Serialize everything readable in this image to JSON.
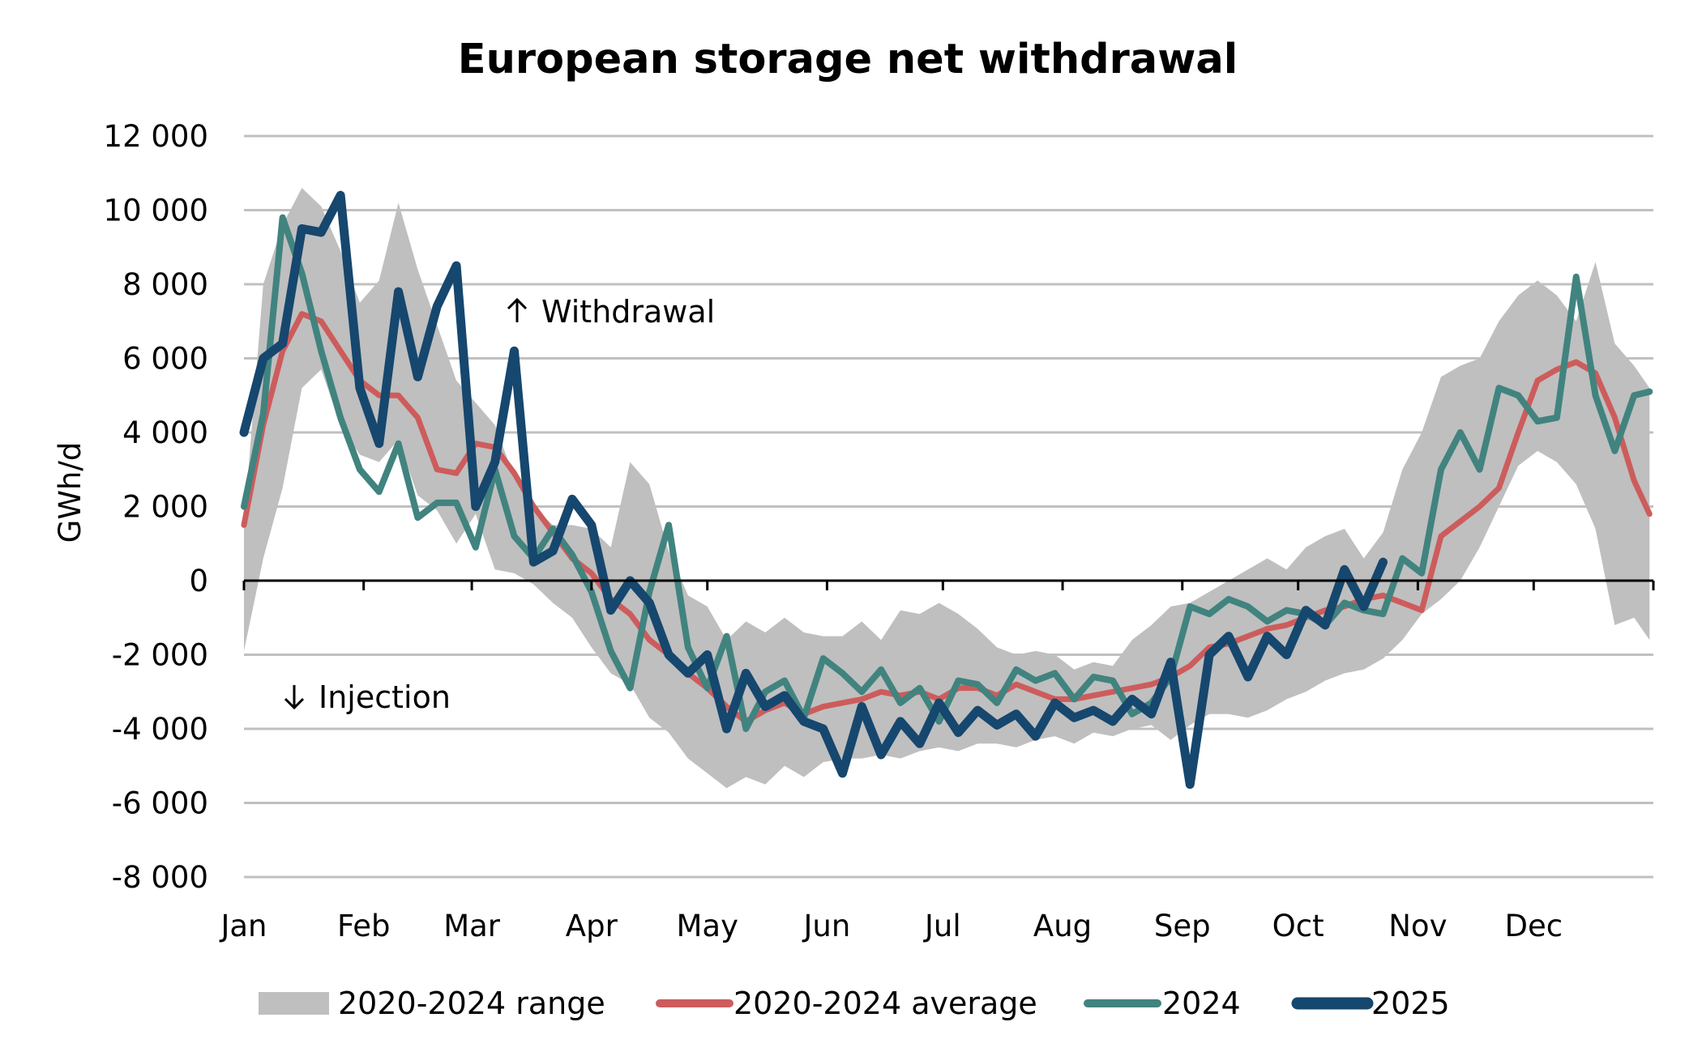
{
  "chart_data": {
    "type": "line",
    "title": "European storage net withdrawal",
    "xlabel": "",
    "ylabel": "GWh/d",
    "ylim": [
      -8000,
      12000
    ],
    "yticks": [
      12000,
      10000,
      8000,
      6000,
      4000,
      2000,
      0,
      -2000,
      -4000,
      -6000,
      -8000
    ],
    "ytick_labels": [
      "12 000",
      "10 000",
      "8 000",
      "6 000",
      "4 000",
      "2 000",
      "0",
      "-2 000",
      "-4 000",
      "-6 000",
      "-8 000"
    ],
    "xlim_days": [
      0,
      365
    ],
    "month_labels": [
      "Jan",
      "Feb",
      "Mar",
      "Apr",
      "May",
      "Jun",
      "Jul",
      "Aug",
      "Sep",
      "Oct",
      "Nov",
      "Dec"
    ],
    "month_start_days": [
      0,
      31,
      59,
      90,
      120,
      151,
      181,
      212,
      243,
      273,
      304,
      334
    ],
    "grid": true,
    "legend_position": "bottom",
    "annotations": [
      {
        "text": "Withdrawal",
        "icon": "arrow-up-icon",
        "x_day": 68,
        "y": 7300
      },
      {
        "text": "Injection",
        "icon": "arrow-down-icon",
        "x_day": 10,
        "y": -3200
      }
    ],
    "x_days": [
      0,
      5,
      10,
      15,
      20,
      25,
      30,
      35,
      40,
      45,
      50,
      55,
      60,
      65,
      70,
      75,
      80,
      85,
      90,
      95,
      100,
      105,
      110,
      115,
      120,
      125,
      130,
      135,
      140,
      145,
      150,
      155,
      160,
      165,
      170,
      175,
      180,
      185,
      190,
      195,
      200,
      205,
      210,
      215,
      220,
      225,
      230,
      235,
      240,
      245,
      250,
      255,
      260,
      265,
      270,
      275,
      280,
      285,
      290,
      295,
      300,
      305,
      310,
      315,
      320,
      325,
      330,
      335,
      340,
      345,
      350,
      355,
      360,
      364
    ],
    "series": [
      {
        "name": "2020-2024 range",
        "kind": "band",
        "color": "#bfbfbf",
        "low": [
          -1900,
          600,
          2500,
          5200,
          5700,
          4200,
          3400,
          3200,
          3800,
          2300,
          1900,
          1000,
          1800,
          300,
          200,
          -100,
          -600,
          -1000,
          -1800,
          -2500,
          -2800,
          -3700,
          -4100,
          -4800,
          -5200,
          -5600,
          -5300,
          -5500,
          -5000,
          -5300,
          -4900,
          -4800,
          -4800,
          -4700,
          -4800,
          -4600,
          -4500,
          -4600,
          -4400,
          -4400,
          -4500,
          -4300,
          -4200,
          -4400,
          -4100,
          -4200,
          -4000,
          -3900,
          -4300,
          -3900,
          -3600,
          -3600,
          -3700,
          -3500,
          -3200,
          -3000,
          -2700,
          -2500,
          -2400,
          -2100,
          -1600,
          -900,
          -500,
          0,
          900,
          2000,
          3100,
          3500,
          3200,
          2600,
          1400,
          -1200,
          -1000,
          -1600
        ],
        "high": [
          1500,
          8000,
          9600,
          10600,
          10100,
          8900,
          7500,
          8100,
          10200,
          8400,
          6900,
          5400,
          4800,
          4200,
          2800,
          2000,
          1500,
          1500,
          1400,
          900,
          3200,
          2600,
          800,
          -400,
          -700,
          -1600,
          -1100,
          -1400,
          -1000,
          -1400,
          -1500,
          -1500,
          -1100,
          -1600,
          -800,
          -900,
          -600,
          -900,
          -1300,
          -1800,
          -2000,
          -1900,
          -2000,
          -2400,
          -2200,
          -2300,
          -1600,
          -1200,
          -700,
          -600,
          -300,
          0,
          300,
          600,
          300,
          900,
          1200,
          1400,
          600,
          1300,
          3000,
          4000,
          5500,
          5800,
          6000,
          7000,
          7700,
          8100,
          7700,
          7000,
          8600,
          6400,
          5800,
          5200
        ]
      },
      {
        "name": "2020-2024 average",
        "kind": "line",
        "color": "#cd5c5c",
        "values": [
          1500,
          4200,
          6200,
          7200,
          7000,
          6200,
          5400,
          5000,
          5000,
          4400,
          3000,
          2900,
          3700,
          3600,
          2900,
          2000,
          1300,
          600,
          200,
          -500,
          -900,
          -1600,
          -2000,
          -2500,
          -2900,
          -3400,
          -3800,
          -3500,
          -3300,
          -3600,
          -3400,
          -3300,
          -3200,
          -3000,
          -3100,
          -3000,
          -3200,
          -2900,
          -2900,
          -3100,
          -2800,
          -3000,
          -3200,
          -3200,
          -3100,
          -3000,
          -2900,
          -2800,
          -2600,
          -2300,
          -1800,
          -1700,
          -1500,
          -1300,
          -1200,
          -1000,
          -800,
          -700,
          -500,
          -400,
          -600,
          -800,
          1200,
          1600,
          2000,
          2500,
          4000,
          5400,
          5700,
          5900,
          5600,
          4400,
          2700,
          1800
        ]
      },
      {
        "name": "2024",
        "kind": "line",
        "color": "#41837f",
        "values": [
          2000,
          4500,
          9800,
          8300,
          6200,
          4400,
          3000,
          2400,
          3700,
          1700,
          2100,
          2100,
          900,
          3000,
          1200,
          600,
          1400,
          700,
          -300,
          -1900,
          -2900,
          -300,
          1500,
          -1800,
          -2900,
          -1500,
          -4000,
          -3000,
          -2700,
          -3700,
          -2100,
          -2500,
          -3000,
          -2400,
          -3300,
          -2900,
          -3800,
          -2700,
          -2800,
          -3300,
          -2400,
          -2700,
          -2500,
          -3200,
          -2600,
          -2700,
          -3600,
          -3300,
          -2600,
          -700,
          -900,
          -500,
          -700,
          -1100,
          -800,
          -900,
          -1200,
          -600,
          -800,
          -900,
          600,
          200,
          3000,
          4000,
          3000,
          5200,
          5000,
          4300,
          4400,
          8200,
          5000,
          3500,
          5000,
          5100
        ]
      },
      {
        "name": "2025",
        "kind": "line",
        "color": "#16476e",
        "values": [
          4000,
          6000,
          6400,
          9500,
          9400,
          10400,
          5200,
          3700,
          7800,
          5500,
          7400,
          8500,
          2000,
          3200,
          6200,
          500,
          800,
          2200,
          1500,
          -800,
          0,
          -600,
          -2000,
          -2500,
          -2000,
          -4000,
          -2500,
          -3400,
          -3100,
          -3800,
          -4000,
          -5200,
          -3400,
          -4700,
          -3800,
          -4400,
          -3300,
          -4100,
          -3500,
          -3900,
          -3600,
          -4200,
          -3300,
          -3700,
          -3500,
          -3800,
          -3200,
          -3600,
          -2200,
          -5500,
          -2000,
          -1500,
          -2600,
          -1500,
          -2000,
          -800,
          -1200,
          300,
          -700,
          500
        ],
        "note": "2025 data ends around mid-October"
      }
    ]
  },
  "legend": {
    "items": [
      {
        "label": "2020-2024 range",
        "symbol": "band",
        "color": "#bfbfbf"
      },
      {
        "label": "2020-2024 average",
        "symbol": "line",
        "color": "#cd5c5c"
      },
      {
        "label": "2024",
        "symbol": "line",
        "color": "#41837f"
      },
      {
        "label": "2025",
        "symbol": "line-thick",
        "color": "#16476e"
      }
    ]
  }
}
